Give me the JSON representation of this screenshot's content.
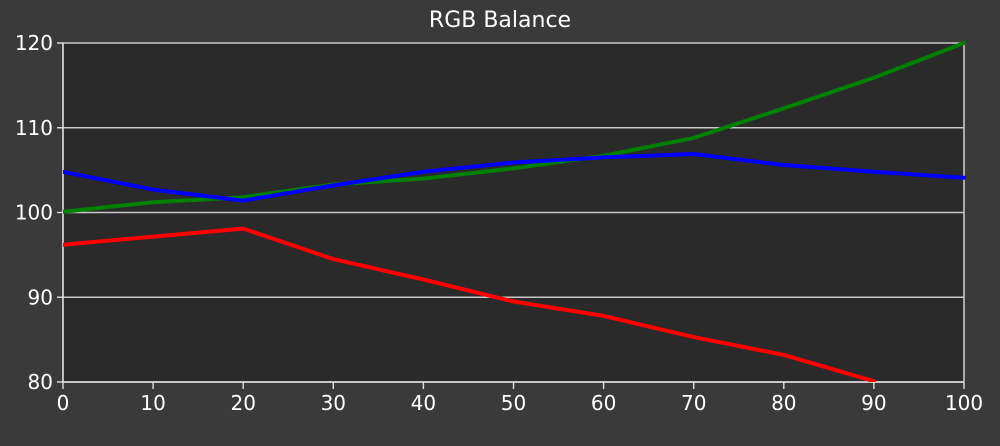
{
  "chart_data": {
    "type": "line",
    "title": "RGB Balance",
    "xlabel": "",
    "ylabel": "",
    "xlim": [
      0,
      100
    ],
    "ylim": [
      80,
      120
    ],
    "x_ticks": [
      0,
      10,
      20,
      30,
      40,
      50,
      60,
      70,
      80,
      90,
      100
    ],
    "y_ticks": [
      80,
      90,
      100,
      110,
      120
    ],
    "grid": "horizontal",
    "colors": {
      "background": "#3a3a3a",
      "plot_background": "#2a2a2a",
      "grid": "#c8c8c8",
      "axis": "#e0e0e0",
      "text": "#ffffff"
    },
    "series": [
      {
        "color": "#ff0000",
        "x": [
          0,
          20,
          30,
          40,
          50,
          60,
          70,
          80,
          90
        ],
        "y": [
          96.2,
          98.1,
          94.5,
          92.1,
          89.5,
          87.8,
          85.3,
          83.2,
          80.1
        ]
      },
      {
        "color": "#008000",
        "x": [
          0,
          10,
          20,
          30,
          40,
          50,
          60,
          70,
          80,
          90,
          100
        ],
        "y": [
          100.1,
          101.2,
          101.8,
          103.3,
          104.0,
          105.2,
          106.7,
          108.8,
          112.3,
          115.9,
          120.0
        ]
      },
      {
        "color": "#0000ff",
        "x": [
          0,
          10,
          20,
          30,
          40,
          50,
          60,
          70,
          80,
          90,
          100
        ],
        "y": [
          104.8,
          102.7,
          101.4,
          103.2,
          104.8,
          105.9,
          106.5,
          106.9,
          105.6,
          104.8,
          104.1
        ]
      }
    ]
  }
}
